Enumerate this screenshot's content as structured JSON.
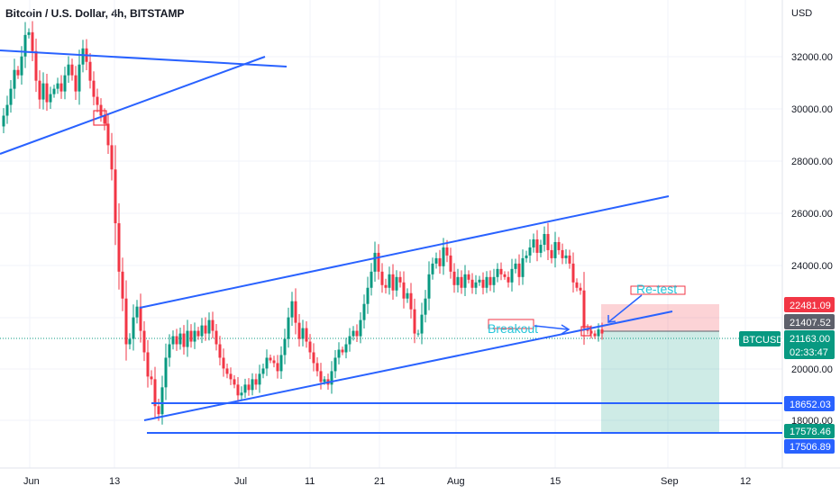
{
  "header": {
    "title": "Bitcoin / U.S. Dollar, 4h, BITSTAMP"
  },
  "chart_data": {
    "type": "candlestick",
    "symbol": "BTCUSD",
    "currency": "USD",
    "ylim": [
      16200,
      33600
    ],
    "y_ticks": [
      "32000.00",
      "30000.00",
      "28000.00",
      "26000.00",
      "24000.00",
      "20000.00",
      "18000.00"
    ],
    "x_ticks": [
      "Jun",
      "13",
      "Jul",
      "11",
      "21",
      "Aug",
      "15",
      "Sep",
      "12"
    ],
    "price_labels": [
      {
        "text": "22481.09",
        "value": 22481.09,
        "color": "#f23645"
      },
      {
        "text": "21407.52",
        "value": 21407.52,
        "color": "#5d606b"
      },
      {
        "text": "21163.00",
        "value": 21163.0,
        "color": "#089981"
      },
      {
        "text": "02:33:47",
        "color": "#089981"
      },
      {
        "text": "18652.03",
        "value": 18652.03,
        "color": "#2962ff"
      },
      {
        "text": "17578.46",
        "value": 17578.46,
        "color": "#089981"
      },
      {
        "text": "17506.89",
        "value": 17506.89,
        "color": "#2962ff"
      }
    ],
    "symbol_badge": "BTCUSD",
    "annotations": [
      {
        "text": "Breakout",
        "color": "#26c6da"
      },
      {
        "text": "Re-test",
        "color": "#26c6da"
      }
    ],
    "colors": {
      "up": "#089981",
      "down": "#f23645",
      "line": "#2962ff"
    },
    "price_path": [
      [
        0,
        28900
      ],
      [
        4,
        29300
      ],
      [
        8,
        29700
      ],
      [
        12,
        30300
      ],
      [
        16,
        31000
      ],
      [
        20,
        30800
      ],
      [
        24,
        31500
      ],
      [
        28,
        32300
      ],
      [
        32,
        32400
      ],
      [
        36,
        31700
      ],
      [
        40,
        30600
      ],
      [
        44,
        29900
      ],
      [
        48,
        30500
      ],
      [
        52,
        29800
      ],
      [
        56,
        30100
      ],
      [
        60,
        30300
      ],
      [
        64,
        30500
      ],
      [
        68,
        30200
      ],
      [
        72,
        30800
      ],
      [
        76,
        31200
      ],
      [
        80,
        30800
      ],
      [
        84,
        30200
      ],
      [
        88,
        31200
      ],
      [
        92,
        31800
      ],
      [
        96,
        31300
      ],
      [
        100,
        30600
      ],
      [
        104,
        30000
      ],
      [
        108,
        29700
      ],
      [
        112,
        29300
      ],
      [
        116,
        29000
      ],
      [
        120,
        28200
      ],
      [
        124,
        27300
      ],
      [
        128,
        25300
      ],
      [
        132,
        23500
      ],
      [
        136,
        22500
      ],
      [
        140,
        20800
      ],
      [
        144,
        21000
      ],
      [
        148,
        21800
      ],
      [
        152,
        22200
      ],
      [
        156,
        21300
      ],
      [
        160,
        20500
      ],
      [
        164,
        19600
      ],
      [
        168,
        19500
      ],
      [
        172,
        18500
      ],
      [
        176,
        18200
      ],
      [
        180,
        19200
      ],
      [
        184,
        20300
      ],
      [
        188,
        20800
      ],
      [
        192,
        21100
      ],
      [
        196,
        20800
      ],
      [
        200,
        21200
      ],
      [
        204,
        20700
      ],
      [
        208,
        21300
      ],
      [
        212,
        20900
      ],
      [
        216,
        21300
      ],
      [
        220,
        21100
      ],
      [
        224,
        21500
      ],
      [
        228,
        21200
      ],
      [
        232,
        21700
      ],
      [
        236,
        21300
      ],
      [
        240,
        20800
      ],
      [
        244,
        20300
      ],
      [
        248,
        19900
      ],
      [
        252,
        19700
      ],
      [
        256,
        19500
      ],
      [
        260,
        19300
      ],
      [
        264,
        18900
      ],
      [
        268,
        19000
      ],
      [
        272,
        19300
      ],
      [
        276,
        19100
      ],
      [
        280,
        19500
      ],
      [
        284,
        19300
      ],
      [
        288,
        19700
      ],
      [
        292,
        19900
      ],
      [
        296,
        20300
      ],
      [
        300,
        20200
      ],
      [
        304,
        20100
      ],
      [
        308,
        19800
      ],
      [
        312,
        20400
      ],
      [
        316,
        21000
      ],
      [
        320,
        21800
      ],
      [
        324,
        22400
      ],
      [
        328,
        21600
      ],
      [
        332,
        21000
      ],
      [
        336,
        21400
      ],
      [
        340,
        20900
      ],
      [
        344,
        20500
      ],
      [
        348,
        20100
      ],
      [
        352,
        19800
      ],
      [
        356,
        19400
      ],
      [
        360,
        19500
      ],
      [
        364,
        19300
      ],
      [
        368,
        19800
      ],
      [
        372,
        20300
      ],
      [
        376,
        20600
      ],
      [
        380,
        20500
      ],
      [
        384,
        20800
      ],
      [
        388,
        21100
      ],
      [
        392,
        21300
      ],
      [
        396,
        21100
      ],
      [
        400,
        21700
      ],
      [
        404,
        22300
      ],
      [
        408,
        22900
      ],
      [
        412,
        23500
      ],
      [
        416,
        24200
      ],
      [
        420,
        23500
      ],
      [
        424,
        23000
      ],
      [
        428,
        22900
      ],
      [
        432,
        23400
      ],
      [
        436,
        22800
      ],
      [
        440,
        23300
      ],
      [
        444,
        23100
      ],
      [
        448,
        22500
      ],
      [
        452,
        22700
      ],
      [
        456,
        22100
      ],
      [
        460,
        21200
      ],
      [
        464,
        21200
      ],
      [
        468,
        21900
      ],
      [
        472,
        22500
      ],
      [
        476,
        23400
      ],
      [
        480,
        23800
      ],
      [
        484,
        24000
      ],
      [
        488,
        23700
      ],
      [
        492,
        24400
      ],
      [
        496,
        24100
      ],
      [
        500,
        23500
      ],
      [
        504,
        23000
      ],
      [
        508,
        23300
      ],
      [
        512,
        22900
      ],
      [
        516,
        23400
      ],
      [
        520,
        23200
      ],
      [
        524,
        22900
      ],
      [
        528,
        23100
      ],
      [
        532,
        23200
      ],
      [
        536,
        22900
      ],
      [
        540,
        23300
      ],
      [
        544,
        23000
      ],
      [
        548,
        23300
      ],
      [
        552,
        23600
      ],
      [
        556,
        23400
      ],
      [
        560,
        23300
      ],
      [
        564,
        23100
      ],
      [
        568,
        23600
      ],
      [
        572,
        23800
      ],
      [
        576,
        23300
      ],
      [
        580,
        24000
      ],
      [
        584,
        24100
      ],
      [
        588,
        24400
      ],
      [
        592,
        24700
      ],
      [
        596,
        24200
      ],
      [
        600,
        24500
      ],
      [
        604,
        24900
      ],
      [
        608,
        24300
      ],
      [
        612,
        24000
      ],
      [
        616,
        24600
      ],
      [
        620,
        24300
      ],
      [
        624,
        24000
      ],
      [
        628,
        24100
      ],
      [
        632,
        23800
      ],
      [
        636,
        23100
      ],
      [
        640,
        22900
      ],
      [
        644,
        22800
      ],
      [
        648,
        21400
      ],
      [
        652,
        21300
      ],
      [
        656,
        21200
      ],
      [
        660,
        21100
      ],
      [
        664,
        21350
      ],
      [
        668,
        21200
      ]
    ]
  }
}
